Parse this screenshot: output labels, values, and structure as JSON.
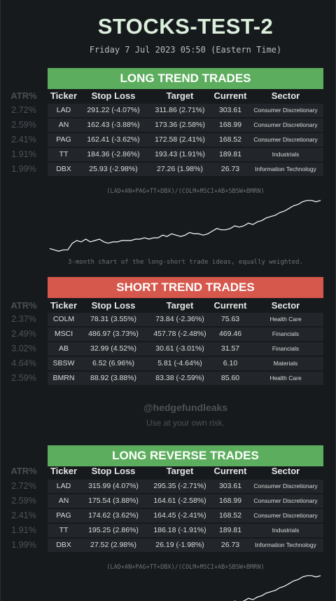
{
  "header": {
    "title": "STOCKS-TEST-2",
    "date": "Friday 7 Jul 2023 05:50 (Eastern Time)"
  },
  "columns": {
    "atr": "ATR%",
    "ticker": "Ticker",
    "stop": "Stop Loss",
    "target": "Target",
    "current": "Current",
    "sector": "Sector"
  },
  "colors": {
    "long": "#5cae5e",
    "short": "#d6574c"
  },
  "long_trend": {
    "title": "LONG TREND TRADES",
    "rows": [
      {
        "atr": "2.72%",
        "ticker": "LAD",
        "stop": "291.22 (-4.07%)",
        "target": "311.86 (2.71%)",
        "current": "303.61",
        "sector": "Consumer Discretionary"
      },
      {
        "atr": "2.59%",
        "ticker": "AN",
        "stop": "162.43 (-3.88%)",
        "target": "173.36 (2.58%)",
        "current": "168.99",
        "sector": "Consumer Discretionary"
      },
      {
        "atr": "2.41%",
        "ticker": "PAG",
        "stop": "162.41 (-3.62%)",
        "target": "172.58 (2.41%)",
        "current": "168.52",
        "sector": "Consumer Discretionary"
      },
      {
        "atr": "1.91%",
        "ticker": "TT",
        "stop": "184.36 (-2.86%)",
        "target": "193.43 (1.91%)",
        "current": "189.81",
        "sector": "Industrials"
      },
      {
        "atr": "1.99%",
        "ticker": "DBX",
        "stop": "25.93 (-2.98%)",
        "target": "27.26 (1.98%)",
        "current": "26.73",
        "sector": "Information Technology"
      }
    ],
    "formula": "(LAD+AN+PAG+TT+DBX)/(COLM+MSCI+AB+SBSW+BMRN)",
    "caption": "3-month chart of the long-short trade ideas, equally weighted."
  },
  "short_trend": {
    "title": "SHORT TREND TRADES",
    "rows": [
      {
        "atr": "2.37%",
        "ticker": "COLM",
        "stop": "78.31 (3.55%)",
        "target": "73.84 (-2.36%)",
        "current": "75.63",
        "sector": "Health Care"
      },
      {
        "atr": "2.49%",
        "ticker": "MSCI",
        "stop": "486.97 (3.73%)",
        "target": "457.78 (-2.48%)",
        "current": "469.46",
        "sector": "Financials"
      },
      {
        "atr": "3.02%",
        "ticker": "AB",
        "stop": "32.99 (4.52%)",
        "target": "30.61 (-3.01%)",
        "current": "31.57",
        "sector": "Financials"
      },
      {
        "atr": "4.64%",
        "ticker": "SBSW",
        "stop": "6.52 (6.96%)",
        "target": "5.81 (-4.64%)",
        "current": "6.10",
        "sector": "Materials"
      },
      {
        "atr": "2.59%",
        "ticker": "BMRN",
        "stop": "88.92 (3.88%)",
        "target": "83.38 (-2.59%)",
        "current": "85.60",
        "sector": "Health Care"
      }
    ]
  },
  "footer": {
    "handle": "@hedgefundleaks",
    "disclaimer": "Use at your own risk."
  },
  "long_reverse": {
    "title": "LONG REVERSE TRADES",
    "rows": [
      {
        "atr": "2.72%",
        "ticker": "LAD",
        "stop": "315.99 (4.07%)",
        "target": "295.35 (-2.71%)",
        "current": "303.61",
        "sector": "Consumer Discretionary"
      },
      {
        "atr": "2.59%",
        "ticker": "AN",
        "stop": "175.54 (3.88%)",
        "target": "164.61 (-2.58%)",
        "current": "168.99",
        "sector": "Consumer Discretionary"
      },
      {
        "atr": "2.41%",
        "ticker": "PAG",
        "stop": "174.62 (3.62%)",
        "target": "164.45 (-2.41%)",
        "current": "168.52",
        "sector": "Consumer Discretionary"
      },
      {
        "atr": "1.91%",
        "ticker": "TT",
        "stop": "195.25 (2.86%)",
        "target": "186.18 (-1.91%)",
        "current": "189.81",
        "sector": "Industrials"
      },
      {
        "atr": "1.99%",
        "ticker": "DBX",
        "stop": "27.52 (2.98%)",
        "target": "26.19 (-1.98%)",
        "current": "26.73",
        "sector": "Information Technology"
      }
    ],
    "formula": "(LAD+AN+PAG+TT+DBX)/(COLM+MSCI+AB+SBSW+BMRN)"
  },
  "chart_data": {
    "type": "line",
    "series": [
      {
        "values": [
          0.62,
          0.61,
          0.6,
          0.61,
          0.61,
          0.66,
          0.68,
          0.67,
          0.69,
          0.67,
          0.68,
          0.69,
          0.67,
          0.66,
          0.67,
          0.67,
          0.68,
          0.68,
          0.68,
          0.69,
          0.69,
          0.7,
          0.69,
          0.7,
          0.7,
          0.72,
          0.71,
          0.73,
          0.72,
          0.71,
          0.72,
          0.74,
          0.73,
          0.73,
          0.72,
          0.73,
          0.75,
          0.77,
          0.76,
          0.76,
          0.77,
          0.79,
          0.78,
          0.79,
          0.81,
          0.8,
          0.82,
          0.83,
          0.85,
          0.86,
          0.87,
          0.89,
          0.9,
          0.92,
          0.94,
          0.95,
          0.97,
          0.98,
          0.98,
          0.97,
          0.98
        ]
      }
    ]
  }
}
